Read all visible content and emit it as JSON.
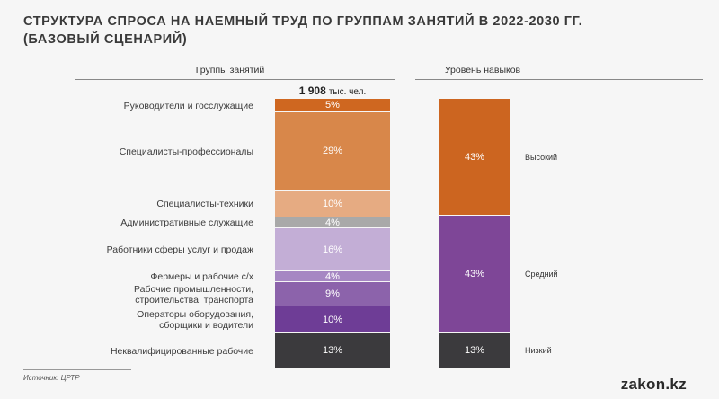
{
  "title_line1": "СТРУКТУРА СПРОСА НА НАЕМНЫЙ ТРУД ПО ГРУППАМ ЗАНЯТИЙ В 2022-2030 ГГ.",
  "title_line2": "(БАЗОВЫЙ СЦЕНАРИЙ)",
  "col_head_groups": "Группы занятий",
  "col_head_skills": "Уровень навыков",
  "total_value": "1 908",
  "total_unit": "тыс. чел.",
  "source": "Источник: ЦРТР",
  "logo": "zakon.kz",
  "chart_data": [
    {
      "type": "bar",
      "stacked": true,
      "xlabel": "Группы занятий",
      "categories": [
        "Руководители и госслужащие",
        "Специалисты-профессионалы",
        "Специалисты-техники",
        "Административные служащие",
        "Работники сферы услуг и продаж",
        "Фермеры и рабочие с/х",
        "Рабочие промышленности, строительства, транспорта",
        "Операторы оборудования, сборщики и водители",
        "Неквалифицированные рабочие"
      ],
      "values": [
        5,
        29,
        10,
        4,
        16,
        4,
        9,
        10,
        13
      ],
      "value_labels": [
        "5%",
        "29%",
        "10%",
        "4%",
        "16%",
        "4%",
        "9%",
        "10%",
        "13%"
      ],
      "colors": [
        "#cf6720",
        "#d8874a",
        "#e6ab82",
        "#a9a9a9",
        "#c3aed6",
        "#a687c3",
        "#8c63ab",
        "#6e3d96",
        "#3b3a3d"
      ],
      "unit": "%"
    },
    {
      "type": "bar",
      "stacked": true,
      "xlabel": "Уровень навыков",
      "categories": [
        "Высокий",
        "Средний",
        "Низкий"
      ],
      "values": [
        43,
        43,
        13
      ],
      "value_labels": [
        "43%",
        "43%",
        "13%"
      ],
      "colors": [
        "#cc6520",
        "#7e4697",
        "#3b3a3d"
      ],
      "unit": "%"
    }
  ]
}
